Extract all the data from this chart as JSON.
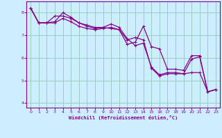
{
  "xlabel": "Windchill (Refroidissement éolien,°C)",
  "bg_color": "#cceeff",
  "line_color": "#880088",
  "grid_color": "#99ccbb",
  "xlim": [
    -0.5,
    23.5
  ],
  "ylim": [
    3.8,
    8.5
  ],
  "xticks": [
    0,
    1,
    2,
    3,
    4,
    5,
    6,
    7,
    8,
    9,
    10,
    11,
    12,
    13,
    14,
    15,
    16,
    17,
    18,
    19,
    20,
    21,
    22,
    23
  ],
  "yticks": [
    4,
    5,
    6,
    7,
    8
  ],
  "series": [
    [
      8.2,
      7.55,
      7.55,
      7.6,
      8.0,
      7.8,
      7.55,
      7.45,
      7.35,
      7.35,
      7.3,
      7.25,
      6.6,
      6.7,
      7.4,
      6.5,
      6.4,
      5.5,
      5.5,
      5.45,
      6.1,
      6.1,
      4.5,
      4.6
    ],
    [
      8.2,
      7.55,
      7.55,
      7.85,
      7.85,
      7.75,
      7.55,
      7.4,
      7.3,
      7.35,
      7.5,
      7.35,
      6.85,
      6.55,
      6.65,
      5.6,
      5.25,
      5.35,
      5.35,
      5.3,
      5.35,
      5.35,
      4.5,
      4.6
    ],
    [
      8.2,
      7.55,
      7.55,
      7.55,
      7.75,
      7.6,
      7.4,
      7.3,
      7.25,
      7.3,
      7.35,
      7.25,
      6.8,
      6.9,
      6.8,
      5.55,
      5.2,
      5.3,
      5.3,
      5.3,
      5.95,
      6.05,
      4.5,
      4.6
    ]
  ]
}
